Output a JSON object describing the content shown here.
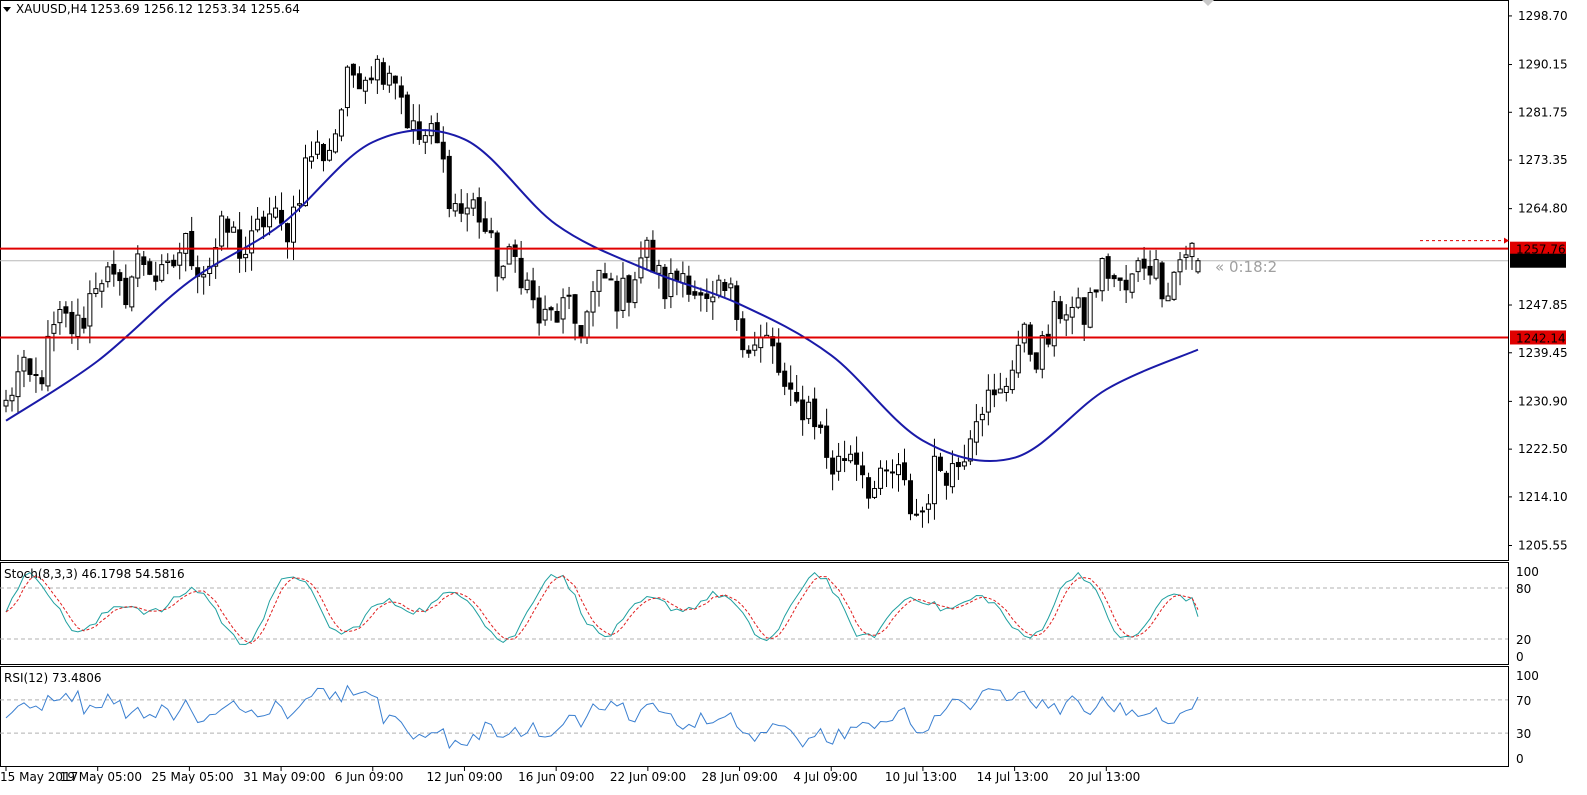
{
  "header": {
    "symbol": "XAUUSD,H4",
    "ohlc": "1253.69 1256.12 1253.34 1255.64",
    "countdown": "« 0:18:2"
  },
  "colors": {
    "candle": "#000000",
    "ma": "#1a1aa8",
    "level": "#e00000",
    "stoch_main": "#20a0a0",
    "stoch_signal": "#e02020",
    "rsi": "#3a7fd0",
    "bid_line": "#b8b8b8",
    "price_label_bg": "#000000",
    "level_label_bg": "#e00000"
  },
  "price_axis": {
    "ticks": [
      "1298.70",
      "1290.15",
      "1281.75",
      "1273.35",
      "1264.80",
      "1247.85",
      "1239.45",
      "1230.90",
      "1222.50",
      "1214.10",
      "1205.55"
    ],
    "range": [
      1203.0,
      1301.5
    ]
  },
  "levels": [
    {
      "price": 1257.76,
      "label": "1257.76"
    },
    {
      "price": 1242.14,
      "label": "1242.14"
    }
  ],
  "current_price": {
    "price": 1255.64,
    "label": "1255.64"
  },
  "time_axis": {
    "labels": [
      "15 May 2017",
      "19 May 05:00",
      "25 May 05:00",
      "31 May 09:00",
      "6 Jun 09:00",
      "12 Jun 09:00",
      "16 Jun 09:00",
      "22 Jun 09:00",
      "28 Jun 09:00",
      "4 Jul 09:00",
      "10 Jul 13:00",
      "14 Jul 13:00",
      "20 Jul 13:00"
    ]
  },
  "stoch": {
    "title": "Stoch(8,3,3) 46.1798 54.5816",
    "ticks": [
      "100",
      "80",
      "20",
      "0"
    ],
    "levels": [
      80,
      20
    ]
  },
  "rsi": {
    "title": "RSI(12) 73.4806",
    "ticks": [
      "100",
      "70",
      "30",
      "0"
    ],
    "levels": [
      70,
      30
    ]
  },
  "chart_data": {
    "type": "candlestick",
    "symbol": "XAUUSD",
    "timeframe": "H4",
    "anchors": [
      {
        "label": "15 May 2017",
        "price": 1230.0
      },
      {
        "label": "19 May 05:00",
        "price": 1251.0
      },
      {
        "label": "25 May 05:00",
        "price": 1256.0
      },
      {
        "label": "31 May 09:00",
        "price": 1262.0
      },
      {
        "label": "6 Jun 09:00",
        "price": 1293.0
      },
      {
        "label": "12 Jun 09:00",
        "price": 1265.0
      },
      {
        "label": "16 Jun 09:00",
        "price": 1244.0
      },
      {
        "label": "22 Jun 09:00",
        "price": 1255.0
      },
      {
        "label": "28 Jun 09:00",
        "price": 1246.0
      },
      {
        "label": "4 Jul 09:00",
        "price": 1222.0
      },
      {
        "label": "10 Jul 13:00",
        "price": 1213.0
      },
      {
        "label": "14 Jul 13:00",
        "price": 1238.0
      },
      {
        "label": "20 Jul 13:00",
        "price": 1252.0
      },
      {
        "label": "last",
        "price": 1255.64
      }
    ],
    "last_ohlc": {
      "open": 1253.69,
      "high": 1256.12,
      "low": 1253.34,
      "close": 1255.64
    },
    "horizontal_levels": [
      1257.76,
      1242.14
    ],
    "moving_average_points": [
      {
        "label": "15 May 2017",
        "price": 1227.5
      },
      {
        "label": "19 May 05:00",
        "price": 1238.0
      },
      {
        "label": "25 May 05:00",
        "price": 1252.0
      },
      {
        "label": "31 May 09:00",
        "price": 1262.0
      },
      {
        "label": "6 Jun 09:00",
        "price": 1276.5
      },
      {
        "label": "12 Jun 09:00",
        "price": 1277.0
      },
      {
        "label": "16 Jun 09:00",
        "price": 1262.0
      },
      {
        "label": "22 Jun 09:00",
        "price": 1254.0
      },
      {
        "label": "28 Jun 09:00",
        "price": 1248.0
      },
      {
        "label": "4 Jul 09:00",
        "price": 1239.0
      },
      {
        "label": "10 Jul 13:00",
        "price": 1224.0
      },
      {
        "label": "14 Jul 13:00",
        "price": 1221.0
      },
      {
        "label": "20 Jul 13:00",
        "price": 1233.0
      },
      {
        "label": "last",
        "price": 1240.0
      }
    ],
    "stoch_last": {
      "main": 46.1798,
      "signal": 54.5816
    },
    "rsi_last": 73.4806
  }
}
